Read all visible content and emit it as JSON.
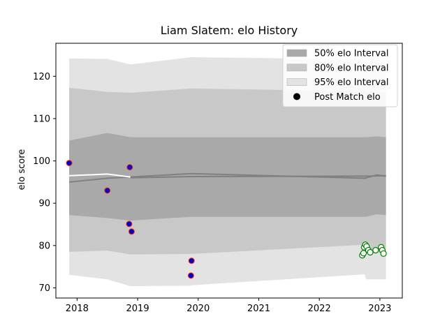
{
  "chart_data": {
    "type": "line",
    "title": "Liam Slatem: elo History",
    "xlabel": "",
    "ylabel": "elo score",
    "xlim": [
      2017.65,
      2023.37
    ],
    "ylim": [
      67.6,
      127.8
    ],
    "x_ticks": [
      2018,
      2019,
      2020,
      2021,
      2022,
      2023
    ],
    "x_tick_labels": [
      "2018",
      "2019",
      "2020",
      "2021",
      "2022",
      "2023"
    ],
    "y_ticks": [
      70,
      80,
      90,
      100,
      110,
      120
    ],
    "y_tick_labels": [
      "70",
      "80",
      "90",
      "100",
      "110",
      "120"
    ],
    "legend_placement": "upper-right",
    "legend": [
      {
        "label": "50% elo Interval",
        "kind": "patch",
        "color": "#a9a9a9"
      },
      {
        "label": "80% elo Interval",
        "kind": "patch",
        "color": "#c8c8c8"
      },
      {
        "label": "95% elo Interval",
        "kind": "patch",
        "color": "#e3e3e3"
      },
      {
        "label": "Post Match elo",
        "kind": "dot",
        "color": "#000000"
      }
    ],
    "bands": [
      {
        "name": "95% elo Interval",
        "color": "#e3e3e3",
        "x": [
          2017.87,
          2018.5,
          2018.88,
          2018.89,
          2019.88,
          2019.89,
          2022.75,
          2022.77,
          2023.1
        ],
        "upper": [
          124.2,
          124.1,
          122.8,
          122.8,
          124.5,
          124.5,
          124.0,
          124.0,
          123.8
        ],
        "lower": [
          73.1,
          72.0,
          70.4,
          70.4,
          70.5,
          70.6,
          73.2,
          72.0,
          72.0
        ]
      },
      {
        "name": "80% elo Interval",
        "color": "#c8c8c8",
        "x": [
          2017.87,
          2018.5,
          2018.88,
          2018.89,
          2019.88,
          2019.89,
          2022.75,
          2022.77,
          2023.1
        ],
        "upper": [
          117.3,
          116.3,
          116.1,
          116.1,
          117.1,
          117.1,
          116.5,
          116.4,
          116.2
        ],
        "lower": [
          78.5,
          78.8,
          77.9,
          77.9,
          78.0,
          78.0,
          80.2,
          78.3,
          78.3
        ]
      },
      {
        "name": "50% elo Interval",
        "color": "#a9a9a9",
        "x": [
          2017.87,
          2018.5,
          2018.88,
          2018.89,
          2019.88,
          2019.89,
          2022.75,
          2022.77,
          2022.95,
          2023.1
        ],
        "upper": [
          104.8,
          106.6,
          105.6,
          105.6,
          105.6,
          105.6,
          105.6,
          105.6,
          105.8,
          105.6
        ],
        "lower": [
          87.2,
          86.5,
          85.9,
          85.9,
          86.8,
          86.8,
          86.8,
          86.8,
          87.4,
          87.2
        ]
      }
    ],
    "lines": [
      {
        "name": "elo estimate",
        "color": "#808080",
        "x": [
          2017.87,
          2018.5,
          2018.88,
          2019.88,
          2022.75,
          2022.95,
          2023.1
        ],
        "y": [
          95.0,
          95.9,
          96.2,
          97.0,
          95.9,
          96.7,
          96.4
        ]
      },
      {
        "name": "elo estimate (post match)",
        "color": "#808080",
        "x": [
          2018.88,
          2019.88,
          2022.75,
          2023.1
        ],
        "y": [
          96.0,
          96.3,
          96.4,
          96.5
        ]
      },
      {
        "name": "pre-2019 estimate",
        "color": "#ffffff",
        "x": [
          2017.87,
          2018.5,
          2018.88
        ],
        "y": [
          96.5,
          96.9,
          96.2
        ]
      }
    ],
    "post_match_elo": {
      "x": [
        2017.87,
        2018.5,
        2018.87,
        2018.86,
        2018.9,
        2019.89,
        2019.88
      ],
      "y": [
        99.5,
        93.0,
        98.5,
        85.1,
        83.3,
        76.4,
        72.9
      ],
      "fill": "#0000cc",
      "edge": "#ff3300"
    },
    "upcoming_points": {
      "x": [
        2022.71,
        2022.73,
        2022.74,
        2022.76,
        2022.78,
        2022.81,
        2022.84,
        2022.93,
        2023.02,
        2023.04,
        2023.06
      ],
      "y": [
        77.7,
        78.2,
        79.6,
        80.2,
        79.8,
        78.9,
        78.4,
        78.9,
        79.6,
        78.9,
        78.1
      ],
      "edge": "#008000"
    }
  }
}
